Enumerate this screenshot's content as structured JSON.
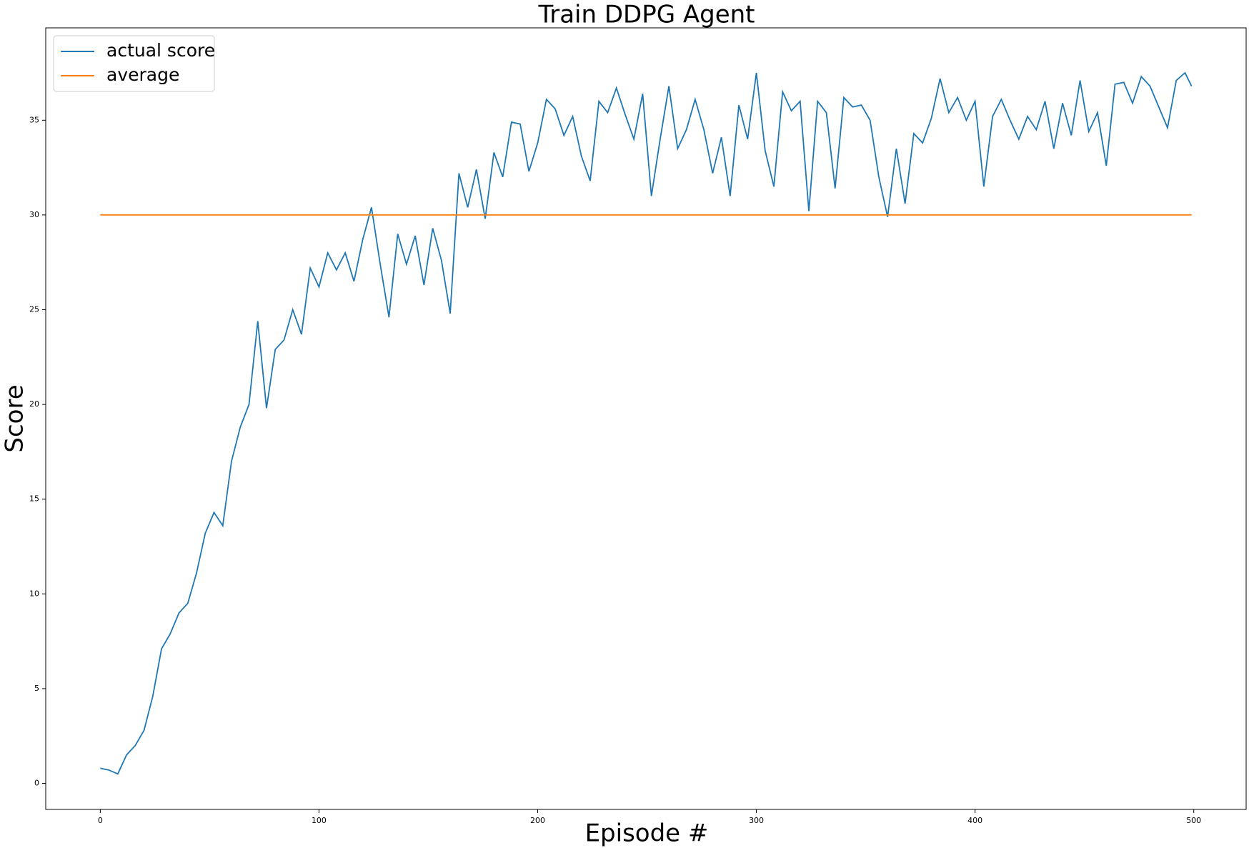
{
  "chart_data": {
    "type": "line",
    "title": "Train DDPG Agent",
    "x_label": "Episode #",
    "y_label": "Score",
    "xlim": [
      -24.95,
      523.95
    ],
    "ylim": [
      -1.375,
      39.875
    ],
    "xticks": [
      0,
      100,
      200,
      300,
      400,
      500
    ],
    "yticks": [
      0,
      5,
      10,
      15,
      20,
      25,
      30,
      35
    ],
    "legend": "upper left",
    "grid": false,
    "series": [
      {
        "name": "actual score",
        "color": "#1f77b4",
        "x": [
          0,
          4,
          8,
          12,
          16,
          20,
          24,
          28,
          32,
          36,
          40,
          44,
          48,
          52,
          56,
          60,
          64,
          68,
          72,
          76,
          80,
          84,
          88,
          92,
          96,
          100,
          104,
          108,
          112,
          116,
          120,
          124,
          128,
          132,
          136,
          140,
          144,
          148,
          152,
          156,
          160,
          164,
          168,
          172,
          176,
          180,
          184,
          188,
          192,
          196,
          200,
          204,
          208,
          212,
          216,
          220,
          224,
          228,
          232,
          236,
          240,
          244,
          248,
          252,
          256,
          260,
          264,
          268,
          272,
          276,
          280,
          284,
          288,
          292,
          296,
          300,
          304,
          308,
          312,
          316,
          320,
          324,
          328,
          332,
          336,
          340,
          344,
          348,
          352,
          356,
          360,
          364,
          368,
          372,
          376,
          380,
          384,
          388,
          392,
          396,
          400,
          404,
          408,
          412,
          416,
          420,
          424,
          428,
          432,
          436,
          440,
          444,
          448,
          452,
          456,
          460,
          464,
          468,
          472,
          476,
          480,
          484,
          488,
          492,
          496,
          499
        ],
        "values": [
          0.8,
          0.7,
          0.5,
          1.5,
          2.0,
          2.8,
          4.6,
          7.1,
          7.9,
          9.0,
          9.5,
          11.1,
          13.2,
          14.3,
          13.6,
          17.0,
          18.8,
          20.0,
          24.4,
          19.8,
          22.9,
          23.4,
          25.0,
          23.7,
          27.2,
          26.2,
          28.0,
          27.1,
          28.0,
          26.5,
          28.7,
          30.4,
          27.4,
          24.6,
          29.0,
          27.4,
          28.9,
          26.3,
          29.3,
          27.6,
          24.8,
          32.2,
          30.4,
          32.4,
          29.8,
          33.3,
          32.0,
          34.9,
          34.8,
          32.3,
          33.8,
          36.1,
          35.6,
          34.2,
          35.2,
          33.1,
          31.8,
          36.0,
          35.4,
          36.7,
          35.3,
          34.0,
          36.4,
          31.0,
          34.0,
          36.8,
          33.5,
          34.5,
          36.1,
          34.5,
          32.2,
          34.1,
          31.0,
          35.8,
          34.0,
          37.5,
          33.4,
          31.5,
          36.5,
          35.5,
          36.0,
          30.2,
          36.0,
          35.4,
          31.4,
          36.2,
          35.7,
          35.8,
          35.0,
          32.0,
          29.9,
          33.5,
          30.6,
          34.3,
          33.8,
          35.1,
          37.2,
          35.4,
          36.2,
          35.0,
          36.0,
          31.5,
          35.2,
          36.1,
          35.0,
          34.0,
          35.2,
          34.5,
          36.0,
          33.5,
          35.9,
          34.2,
          37.1,
          34.4,
          35.4,
          32.6,
          36.9,
          37.0,
          35.9,
          37.3,
          36.8,
          35.7,
          34.6,
          37.1,
          37.5,
          36.8
        ]
      },
      {
        "name": "average",
        "color": "#ff7f0e",
        "x": [
          0,
          499
        ],
        "values": [
          30,
          30
        ]
      }
    ]
  }
}
